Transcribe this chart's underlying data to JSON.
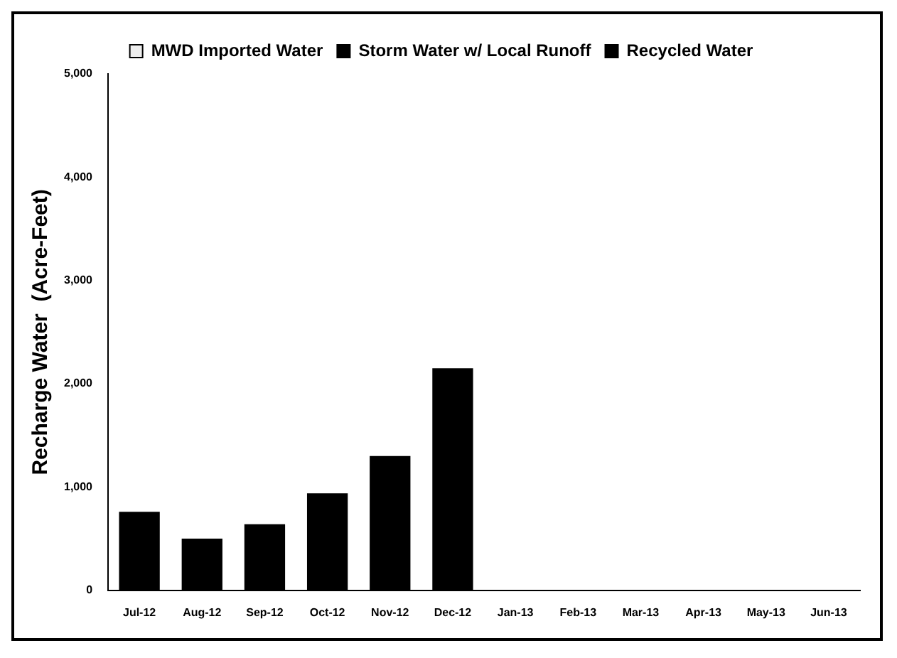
{
  "chart_data": {
    "type": "bar",
    "stacked": true,
    "ylabel": "Recharge Water  (Acre-Feet)",
    "categories": [
      "Jul-12",
      "Aug-12",
      "Sep-12",
      "Oct-12",
      "Nov-12",
      "Dec-12",
      "Jan-13",
      "Feb-13",
      "Mar-13",
      "Apr-13",
      "May-13",
      "Jun-13"
    ],
    "series": [
      {
        "name": "MWD Imported Water",
        "color": "#eeeeee",
        "values": [
          0,
          0,
          0,
          0,
          0,
          0,
          0,
          null,
          null,
          null,
          null,
          null
        ]
      },
      {
        "name": "Storm Water w/ Local Runoff",
        "color": "#000000",
        "values": [
          0,
          0,
          0,
          0,
          0,
          0,
          0,
          null,
          null,
          null,
          null,
          null
        ]
      },
      {
        "name": "Recycled Water",
        "color": "#000000",
        "values": [
          760,
          500,
          640,
          940,
          1300,
          2150,
          0,
          null,
          null,
          null,
          null,
          null
        ]
      }
    ],
    "ylim": [
      0,
      5000
    ],
    "yticks": [
      {
        "value": 0,
        "label": "0"
      },
      {
        "value": 1000,
        "label": "1,000"
      },
      {
        "value": 2000,
        "label": "2,000"
      },
      {
        "value": 3000,
        "label": "3,000"
      },
      {
        "value": 4000,
        "label": "4,000"
      },
      {
        "value": 5000,
        "label": "5,000"
      }
    ],
    "grid": false,
    "legend": "top"
  }
}
